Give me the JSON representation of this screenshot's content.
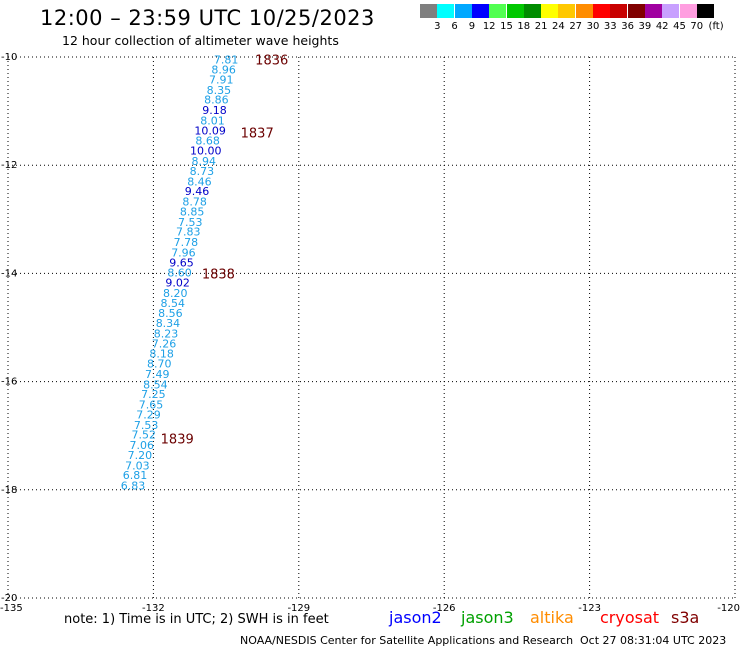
{
  "title": "12:00 – 23:59 UTC 10/25/2023",
  "subtitle": "12 hour collection of altimeter wave heights",
  "legend": {
    "labels": [
      "3",
      "6",
      "9",
      "12",
      "15",
      "18",
      "21",
      "24",
      "27",
      "30",
      "33",
      "36",
      "39",
      "42",
      "45",
      "70",
      "(ft)"
    ],
    "colors": [
      "#7f7f7f",
      "#00ffff",
      "#00a8ff",
      "#0000ff",
      "#50ff50",
      "#00c800",
      "#008c00",
      "#ffff00",
      "#ffc800",
      "#ff8c00",
      "#ff0000",
      "#c80000",
      "#800000",
      "#a000a0",
      "#c8a0ff",
      "#ff9ee0",
      "#000000"
    ]
  },
  "axes": {
    "lat_labels": [
      "-10",
      "-12",
      "-14",
      "-16",
      "-18",
      "-20"
    ],
    "lon_labels": [
      "-135",
      "-132",
      "-129",
      "-126",
      "-123",
      "-120"
    ]
  },
  "colors": {
    "cyan_text": "#1ea0e6",
    "blue_text": "#0000c8",
    "pass_number": "#6b0000"
  },
  "chart_data": {
    "type": "scatter",
    "xlim": [
      -135,
      -120
    ],
    "ylim": [
      -20,
      -10
    ],
    "xlabel": "",
    "ylabel": "",
    "grid": true,
    "units": "ft",
    "track_points": [
      {
        "lon": -130.5,
        "lat": -10.05,
        "value": "7.81",
        "color": "cyan"
      },
      {
        "lon": -130.55,
        "lat": -10.23,
        "value": "8.96",
        "color": "cyan"
      },
      {
        "lon": -130.6,
        "lat": -10.42,
        "value": "7.91",
        "color": "cyan"
      },
      {
        "lon": -130.65,
        "lat": -10.61,
        "value": "8.35",
        "color": "cyan"
      },
      {
        "lon": -130.7,
        "lat": -10.79,
        "value": "8.86",
        "color": "cyan"
      },
      {
        "lon": -130.74,
        "lat": -10.98,
        "value": "9.18",
        "color": "blue"
      },
      {
        "lon": -130.78,
        "lat": -11.17,
        "value": "8.01",
        "color": "cyan"
      },
      {
        "lon": -130.83,
        "lat": -11.36,
        "value": "10.09",
        "color": "blue"
      },
      {
        "lon": -130.88,
        "lat": -11.54,
        "value": "8.68",
        "color": "cyan"
      },
      {
        "lon": -130.92,
        "lat": -11.73,
        "value": "10.00",
        "color": "blue"
      },
      {
        "lon": -130.96,
        "lat": -11.92,
        "value": "8.94",
        "color": "cyan"
      },
      {
        "lon": -131.0,
        "lat": -12.11,
        "value": "8.73",
        "color": "cyan"
      },
      {
        "lon": -131.05,
        "lat": -12.3,
        "value": "8.46",
        "color": "cyan"
      },
      {
        "lon": -131.1,
        "lat": -12.48,
        "value": "9.46",
        "color": "blue"
      },
      {
        "lon": -131.15,
        "lat": -12.67,
        "value": "8.78",
        "color": "cyan"
      },
      {
        "lon": -131.2,
        "lat": -12.86,
        "value": "8.85",
        "color": "cyan"
      },
      {
        "lon": -131.24,
        "lat": -13.05,
        "value": "7.53",
        "color": "cyan"
      },
      {
        "lon": -131.28,
        "lat": -13.23,
        "value": "7.83",
        "color": "cyan"
      },
      {
        "lon": -131.33,
        "lat": -13.42,
        "value": "7.78",
        "color": "cyan"
      },
      {
        "lon": -131.38,
        "lat": -13.61,
        "value": "7.96",
        "color": "cyan"
      },
      {
        "lon": -131.42,
        "lat": -13.8,
        "value": "9.65",
        "color": "blue"
      },
      {
        "lon": -131.46,
        "lat": -13.98,
        "value": "8.60",
        "color": "cyan"
      },
      {
        "lon": -131.5,
        "lat": -14.17,
        "value": "9.02",
        "color": "blue"
      },
      {
        "lon": -131.55,
        "lat": -14.36,
        "value": "8.20",
        "color": "cyan"
      },
      {
        "lon": -131.6,
        "lat": -14.55,
        "value": "8.54",
        "color": "cyan"
      },
      {
        "lon": -131.65,
        "lat": -14.73,
        "value": "8.56",
        "color": "cyan"
      },
      {
        "lon": -131.7,
        "lat": -14.92,
        "value": "8.34",
        "color": "cyan"
      },
      {
        "lon": -131.74,
        "lat": -15.11,
        "value": "8.23",
        "color": "cyan"
      },
      {
        "lon": -131.78,
        "lat": -15.3,
        "value": "7.26",
        "color": "cyan"
      },
      {
        "lon": -131.83,
        "lat": -15.48,
        "value": "8.18",
        "color": "cyan"
      },
      {
        "lon": -131.88,
        "lat": -15.67,
        "value": "8.70",
        "color": "cyan"
      },
      {
        "lon": -131.92,
        "lat": -15.86,
        "value": "7.49",
        "color": "cyan"
      },
      {
        "lon": -131.96,
        "lat": -16.05,
        "value": "8.54",
        "color": "cyan"
      },
      {
        "lon": -132.0,
        "lat": -16.23,
        "value": "7.25",
        "color": "cyan"
      },
      {
        "lon": -132.05,
        "lat": -16.42,
        "value": "7.65",
        "color": "cyan"
      },
      {
        "lon": -132.1,
        "lat": -16.61,
        "value": "7.29",
        "color": "cyan"
      },
      {
        "lon": -132.15,
        "lat": -16.8,
        "value": "7.53",
        "color": "cyan"
      },
      {
        "lon": -132.2,
        "lat": -16.98,
        "value": "7.52",
        "color": "cyan"
      },
      {
        "lon": -132.24,
        "lat": -17.17,
        "value": "7.06",
        "color": "cyan"
      },
      {
        "lon": -132.28,
        "lat": -17.36,
        "value": "7.20",
        "color": "cyan"
      },
      {
        "lon": -132.33,
        "lat": -17.55,
        "value": "7.03",
        "color": "cyan"
      },
      {
        "lon": -132.38,
        "lat": -17.73,
        "value": "6.81",
        "color": "cyan"
      },
      {
        "lon": -132.42,
        "lat": -17.92,
        "value": "6.83",
        "color": "cyan"
      }
    ],
    "pass_labels": [
      {
        "lon": -129.9,
        "lat": -10.05,
        "text": "1836"
      },
      {
        "lon": -130.2,
        "lat": -11.4,
        "text": "1837"
      },
      {
        "lon": -131.0,
        "lat": -14.0,
        "text": "1838"
      },
      {
        "lon": -131.85,
        "lat": -17.05,
        "text": "1839"
      }
    ]
  },
  "note": "note: 1) Time is in UTC; 2) SWH is in feet",
  "satellites": [
    {
      "name": "jason2",
      "color": "#0000ff"
    },
    {
      "name": "jason3",
      "color": "#00a000"
    },
    {
      "name": "altika",
      "color": "#ff8c00"
    },
    {
      "name": "cryosat",
      "color": "#ff0000"
    },
    {
      "name": "s3a",
      "color": "#800000"
    }
  ],
  "footer": {
    "credit": "NOAA/NESDIS Center for Satellite Applications and Research",
    "timestamp": "Oct 27 08:31:04 UTC 2023"
  }
}
